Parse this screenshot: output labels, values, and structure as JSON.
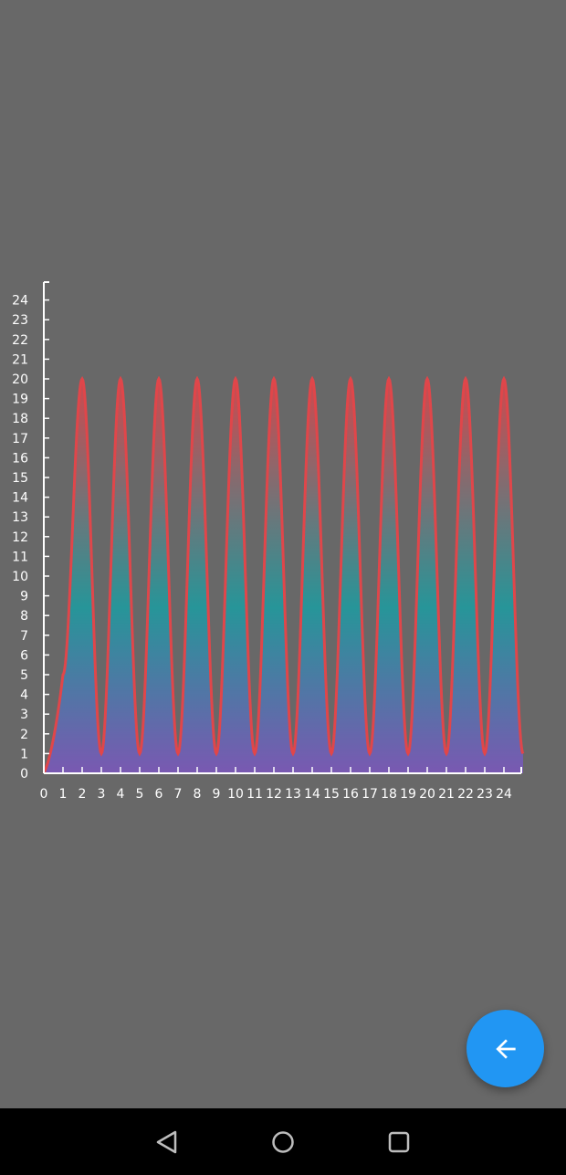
{
  "colors": {
    "background": "#686868",
    "axis": "#ffffff",
    "line": "#e0464a",
    "fill_top": "#d9464b",
    "fill_mid": "#21999d",
    "fill_bottom": "#7b57b8",
    "fab": "#2196f3",
    "navbar": "#000000"
  },
  "fab": {
    "icon": "arrow-left-icon"
  },
  "navbar": {
    "back_icon": "back-triangle-icon",
    "home_icon": "home-circle-icon",
    "recents_icon": "recents-square-icon"
  },
  "chart_data": {
    "type": "area",
    "title": "",
    "xlabel": "",
    "ylabel": "",
    "xlim": [
      0,
      25
    ],
    "ylim": [
      0,
      25
    ],
    "x_ticks": [
      0,
      1,
      2,
      3,
      4,
      5,
      6,
      7,
      8,
      9,
      10,
      11,
      12,
      13,
      14,
      15,
      16,
      17,
      18,
      19,
      20,
      21,
      22,
      23,
      24
    ],
    "y_ticks": [
      0,
      1,
      2,
      3,
      4,
      5,
      6,
      7,
      8,
      9,
      10,
      11,
      12,
      13,
      14,
      15,
      16,
      17,
      18,
      19,
      20,
      21,
      22,
      23,
      24
    ],
    "grid": false,
    "legend": "none",
    "series": [
      {
        "x": [
          0,
          1,
          2,
          3,
          4,
          5,
          6,
          7,
          8,
          9,
          10,
          11,
          12,
          13,
          14,
          15,
          16,
          17,
          18,
          19,
          20,
          21,
          22,
          23,
          24,
          25
        ],
        "values": [
          0,
          5,
          20,
          1,
          20,
          1,
          20,
          1,
          20,
          1,
          20,
          1,
          20,
          1,
          20,
          1,
          20,
          1,
          20,
          1,
          20,
          1,
          20,
          1,
          20,
          1
        ]
      }
    ]
  }
}
